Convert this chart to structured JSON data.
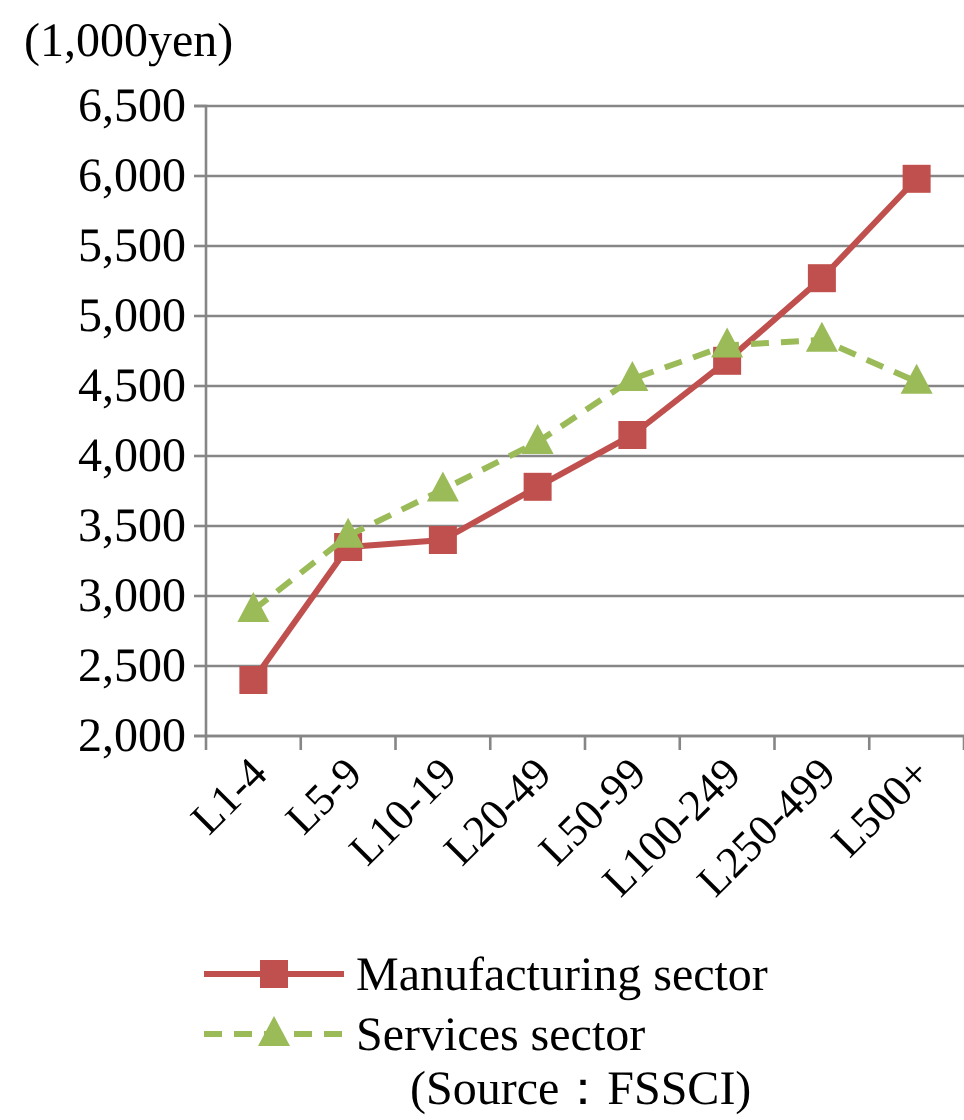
{
  "chart_data": {
    "type": "line",
    "ylabel": "(1,000yen)",
    "categories": [
      "L1-4",
      "L5-9",
      "L10-19",
      "L20-49",
      "L50-99",
      "L100-249",
      "L250-499",
      "L500+"
    ],
    "series": [
      {
        "name": "Manufacturing sector",
        "color": "#c0504d",
        "marker": "square",
        "line_style": "solid",
        "values": [
          2400,
          3350,
          3400,
          3780,
          4150,
          4680,
          5270,
          5980
        ]
      },
      {
        "name": "Services sector",
        "color": "#9bbb59",
        "marker": "triangle",
        "line_style": "dashed",
        "values": [
          2900,
          3430,
          3760,
          4100,
          4550,
          4790,
          4830,
          4530
        ]
      }
    ],
    "ylim": [
      2000,
      6500
    ],
    "yticks": [
      {
        "value": 2000,
        "label": "2,000"
      },
      {
        "value": 2500,
        "label": "2,500"
      },
      {
        "value": 3000,
        "label": "3,000"
      },
      {
        "value": 3500,
        "label": "3,500"
      },
      {
        "value": 4000,
        "label": "4,000"
      },
      {
        "value": 4500,
        "label": "4,500"
      },
      {
        "value": 5000,
        "label": "5,000"
      },
      {
        "value": 5500,
        "label": "5,500"
      },
      {
        "value": 6000,
        "label": "6,000"
      },
      {
        "value": 6500,
        "label": "6,500"
      }
    ],
    "grid": "y",
    "legend": "bottom",
    "annotations": [
      "(Source：FSSCI)"
    ]
  }
}
